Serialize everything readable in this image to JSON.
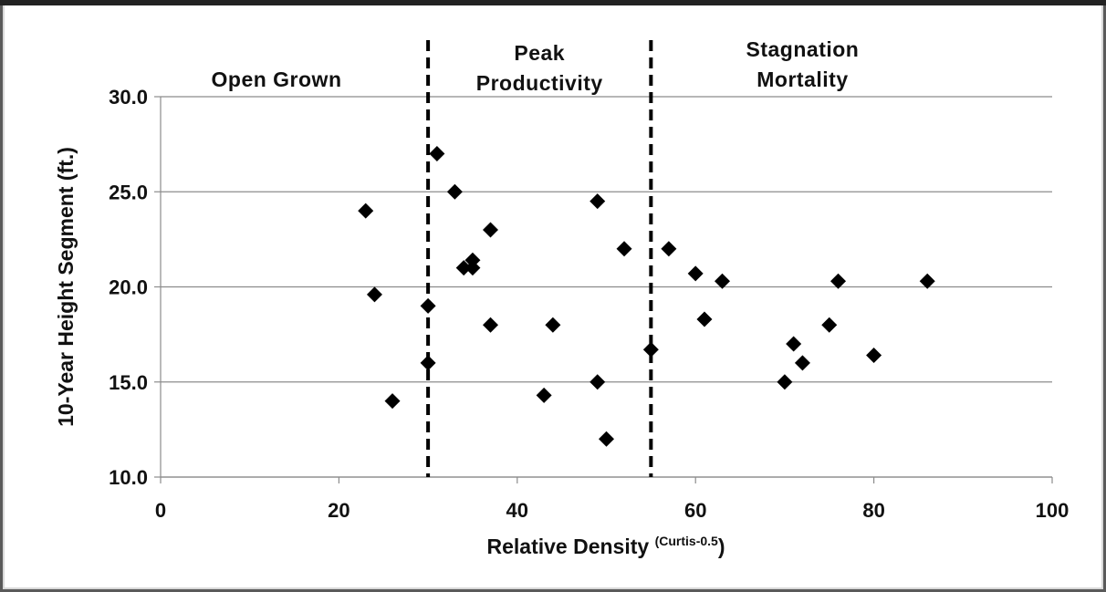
{
  "chart_data": {
    "type": "scatter",
    "xlabel": "Relative Density",
    "xlabel_superscript": "(Curtis-0.5",
    "xlabel_close": ")",
    "ylabel": "10-Year Height Segment (ft.)",
    "xlim": [
      0,
      100
    ],
    "ylim": [
      10,
      30
    ],
    "x_ticks": [
      "0",
      "20",
      "40",
      "60",
      "80",
      "100"
    ],
    "y_ticks": [
      "10.0",
      "15.0",
      "20.0",
      "25.0",
      "30.0"
    ],
    "grid": "horizontal",
    "marker": "diamond",
    "marker_color": "#000000",
    "divider_x": [
      30,
      55
    ],
    "regions": [
      {
        "lines": [
          "Open Grown"
        ]
      },
      {
        "lines": [
          "Peak",
          "Productivity"
        ]
      },
      {
        "lines": [
          "Stagnation",
          "Mortality"
        ]
      }
    ],
    "points": [
      {
        "x": 23,
        "y": 24.0
      },
      {
        "x": 24,
        "y": 19.6
      },
      {
        "x": 26,
        "y": 14.0
      },
      {
        "x": 30,
        "y": 19.0
      },
      {
        "x": 30,
        "y": 16.0
      },
      {
        "x": 31,
        "y": 27.0
      },
      {
        "x": 33,
        "y": 25.0
      },
      {
        "x": 34,
        "y": 21.0
      },
      {
        "x": 35,
        "y": 21.0
      },
      {
        "x": 35,
        "y": 21.4
      },
      {
        "x": 37,
        "y": 23.0
      },
      {
        "x": 37,
        "y": 18.0
      },
      {
        "x": 43,
        "y": 14.3
      },
      {
        "x": 44,
        "y": 18.0
      },
      {
        "x": 49,
        "y": 24.5
      },
      {
        "x": 49,
        "y": 15.0
      },
      {
        "x": 50,
        "y": 12.0
      },
      {
        "x": 52,
        "y": 22.0
      },
      {
        "x": 55,
        "y": 16.7
      },
      {
        "x": 57,
        "y": 22.0
      },
      {
        "x": 60,
        "y": 20.7
      },
      {
        "x": 61,
        "y": 18.3
      },
      {
        "x": 63,
        "y": 20.3
      },
      {
        "x": 70,
        "y": 15.0
      },
      {
        "x": 71,
        "y": 17.0
      },
      {
        "x": 72,
        "y": 16.0
      },
      {
        "x": 75,
        "y": 18.0
      },
      {
        "x": 76,
        "y": 20.3
      },
      {
        "x": 80,
        "y": 16.4
      },
      {
        "x": 86,
        "y": 20.3
      }
    ]
  }
}
